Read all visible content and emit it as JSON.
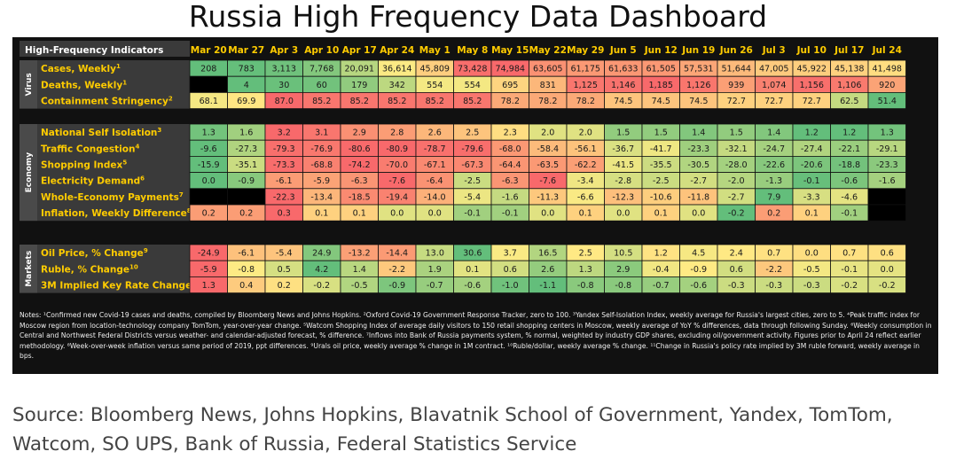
{
  "title": "Russia High Frequency Data Dashboard",
  "header_label": "High-Frequency Indicators",
  "source": "Source: Bloomberg News, Johns Hopkins, Blavatnik School of Government, Yandex, TomTom, Watcom, SO UPS, Bank of Russia, Federal Statistics Service",
  "notes": "Notes: ¹Confirmed new Covid-19 cases and deaths, compiled by Bloomberg News and Johns Hopkins. ²Oxford Covid-19 Government Response Tracker, zero to 100. ³Yandex Self-Isolation Index, weekly average for Russia's largest cities, zero to 5. ⁴Peak traffic index for Moscow region from location-technology company TomTom, year-over-year change. ⁵Watcom Shopping Index of average daily visitors to 150 retail shopping centers in Moscow, weekly average of YoY % differences, data through following Sunday. ⁶Weekly consumption in Central and Northwest Federal Districts versus weather- and calendar-adjusted forecast, % difference. ⁷Inflows into Bank of Russia payments system, % normal, weighted by industry GDP shares, excluding oil/government activity. Figures prior to April 24 reflect earlier methodology. ⁸Week-over-week inflation versus same period of 2019, ppt differences. ⁹Urals oil price, weekly average % change in 1M contract. ¹⁰Ruble/dollar, weekly average % change. ¹¹Change in Russia's policy rate implied by 3M ruble forward, weekly average in bps.",
  "chart_data": {
    "type": "table",
    "columns": [
      "Mar 20",
      "Mar 27",
      "Apr 3",
      "Apr 10",
      "Apr 17",
      "Apr 24",
      "May 1",
      "May 8",
      "May 15",
      "May 22",
      "May 29",
      "Jun 5",
      "Jun 12",
      "Jun 19",
      "Jun 26",
      "Jul 3",
      "Jul 10",
      "Jul 17",
      "Jul 24"
    ],
    "colors": {
      "red": "#f8696b",
      "yellow": "#ffeb84",
      "green": "#63be7b",
      "blank": "#000000"
    },
    "sections": [
      {
        "name": "Virus",
        "rows": [
          {
            "label": "Cases, Weekly",
            "sup": "1",
            "scale": "high_bad",
            "values": [
              "208",
              "783",
              "3,113",
              "7,768",
              "20,091",
              "36,614",
              "45,809",
              "73,428",
              "74,984",
              "63,605",
              "61,175",
              "61,633",
              "61,505",
              "57,531",
              "51,644",
              "47,005",
              "45,922",
              "45,138",
              "41,498"
            ]
          },
          {
            "label": "Deaths, Weekly",
            "sup": "1",
            "scale": "high_bad",
            "values": [
              "",
              "4",
              "30",
              "60",
              "179",
              "342",
              "554",
              "554",
              "695",
              "831",
              "1,125",
              "1,146",
              "1,185",
              "1,126",
              "939",
              "1,074",
              "1,156",
              "1,106",
              "920"
            ]
          },
          {
            "label": "Containment Stringency",
            "sup": "2",
            "scale": "high_bad",
            "values": [
              "68.1",
              "69.9",
              "87.0",
              "85.2",
              "85.2",
              "85.2",
              "85.2",
              "85.2",
              "78.2",
              "78.2",
              "78.2",
              "74.5",
              "74.5",
              "74.5",
              "72.7",
              "72.7",
              "72.7",
              "62.5",
              "51.4"
            ]
          }
        ]
      },
      {
        "name": "Economy",
        "rows": [
          {
            "label": "National Self Isolation",
            "sup": "3",
            "scale": "high_bad",
            "values": [
              "1.3",
              "1.6",
              "3.2",
              "3.1",
              "2.9",
              "2.8",
              "2.6",
              "2.5",
              "2.3",
              "2.0",
              "2.0",
              "1.5",
              "1.5",
              "1.4",
              "1.5",
              "1.4",
              "1.2",
              "1.2",
              "1.3"
            ]
          },
          {
            "label": "Traffic Congestion",
            "sup": "4",
            "scale": "high_good",
            "values": [
              "-9.6",
              "-27.3",
              "-79.3",
              "-76.9",
              "-80.6",
              "-80.9",
              "-78.7",
              "-79.6",
              "-68.0",
              "-58.4",
              "-56.1",
              "-36.7",
              "-41.7",
              "-23.3",
              "-32.1",
              "-24.7",
              "-27.4",
              "-22.1",
              "-29.1"
            ]
          },
          {
            "label": "Shopping Index",
            "sup": "5",
            "scale": "high_good",
            "values": [
              "-15.9",
              "-35.1",
              "-73.3",
              "-68.8",
              "-74.2",
              "-70.0",
              "-67.1",
              "-67.3",
              "-64.4",
              "-63.5",
              "-62.2",
              "-41.5",
              "-35.5",
              "-30.5",
              "-28.0",
              "-22.6",
              "-20.6",
              "-18.8",
              "-23.3"
            ]
          },
          {
            "label": "Electricity Demand",
            "sup": "6",
            "scale": "high_good",
            "values": [
              "0.0",
              "-0.9",
              "-6.1",
              "-5.9",
              "-6.3",
              "-7.6",
              "-6.4",
              "-2.5",
              "-6.3",
              "-7.6",
              "-3.4",
              "-2.8",
              "-2.5",
              "-2.7",
              "-2.0",
              "-1.3",
              "-0.1",
              "-0.6",
              "-1.6"
            ]
          },
          {
            "label": "Whole-Economy Payments",
            "sup": "7",
            "scale": "high_good",
            "values": [
              "",
              "",
              "-22.3",
              "-13.4",
              "-18.5",
              "-19.4",
              "-14.0",
              "-5.4",
              "-1.6",
              "-11.3",
              "-6.6",
              "-12.3",
              "-10.6",
              "-11.8",
              "-2.7",
              "7.9",
              "-3.3",
              "-4.6",
              ""
            ]
          },
          {
            "label": "Inflation, Weekly Difference",
            "sup": "8",
            "scale": "high_bad",
            "values": [
              "0.2",
              "0.2",
              "0.3",
              "0.1",
              "0.1",
              "0.0",
              "0.0",
              "-0.1",
              "-0.1",
              "0.0",
              "0.1",
              "0.0",
              "0.1",
              "0.0",
              "-0.2",
              "0.2",
              "0.1",
              "-0.1",
              ""
            ]
          }
        ]
      },
      {
        "name": "Markets",
        "rows": [
          {
            "label": "Oil Price, % Change",
            "sup": "9",
            "scale": "high_good",
            "values": [
              "-24.9",
              "-6.1",
              "-5.4",
              "24.9",
              "-13.2",
              "-14.4",
              "13.0",
              "30.6",
              "3.7",
              "16.5",
              "2.5",
              "10.5",
              "1.2",
              "4.5",
              "2.4",
              "0.7",
              "0.0",
              "0.7",
              "0.6"
            ]
          },
          {
            "label": "Ruble, % Change",
            "sup": "10",
            "scale": "high_good",
            "values": [
              "-5.9",
              "-0.8",
              "0.5",
              "4.2",
              "1.4",
              "-2.2",
              "1.9",
              "0.1",
              "0.6",
              "2.6",
              "1.3",
              "2.9",
              "-0.4",
              "-0.9",
              "0.6",
              "-2.2",
              "-0.5",
              "-0.1",
              "0.0"
            ]
          },
          {
            "label": "3M Implied Key Rate Change",
            "sup": "11",
            "scale": "high_bad",
            "values": [
              "1.3",
              "0.4",
              "0.2",
              "-0.2",
              "-0.5",
              "-0.9",
              "-0.7",
              "-0.6",
              "-1.0",
              "-1.1",
              "-0.8",
              "-0.8",
              "-0.7",
              "-0.6",
              "-0.3",
              "-0.3",
              "-0.3",
              "-0.2",
              "-0.2"
            ]
          }
        ]
      }
    ]
  }
}
